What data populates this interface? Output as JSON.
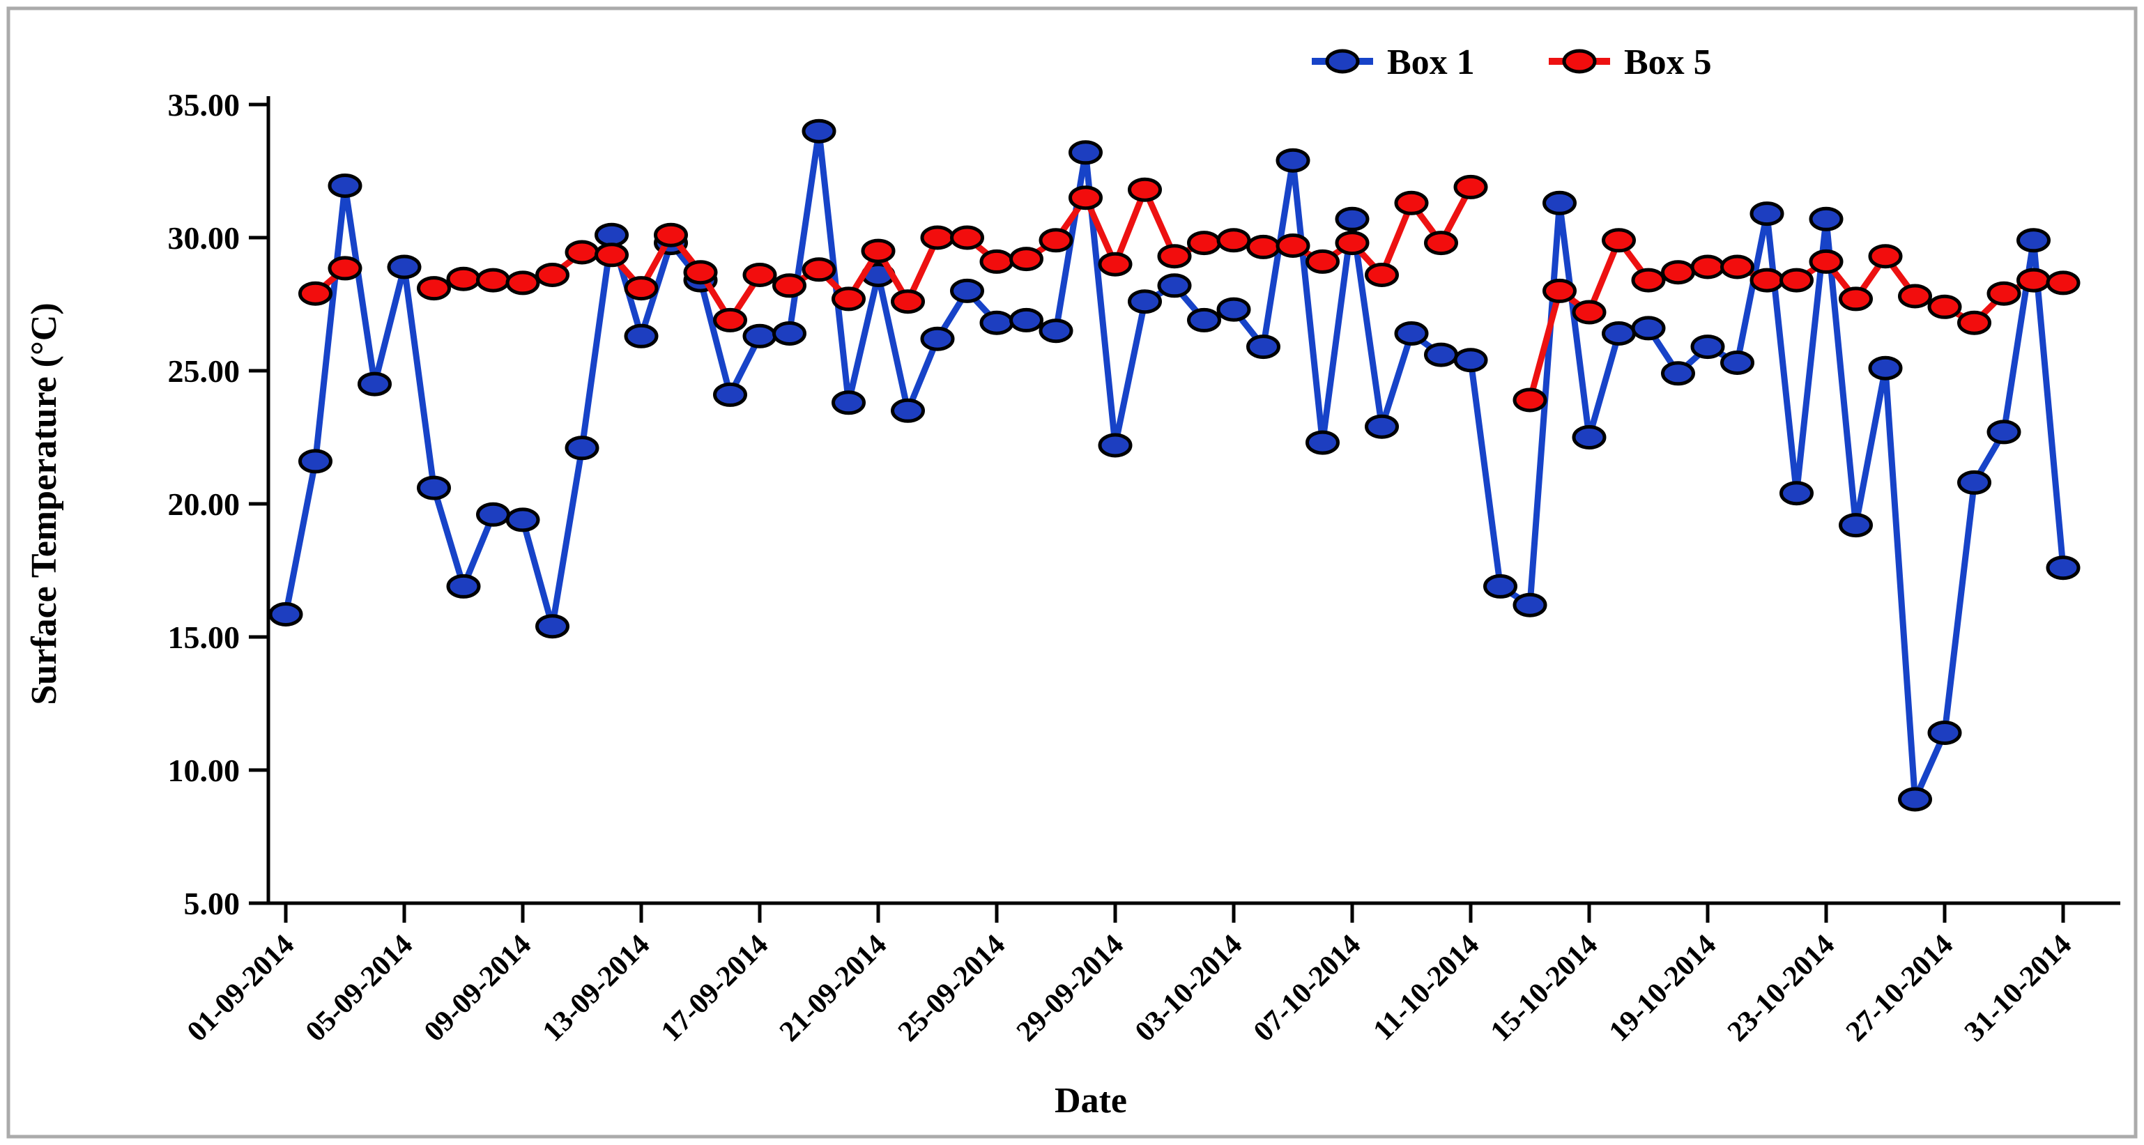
{
  "figure": {
    "border_color": "#ababab",
    "background": "#ffffff"
  },
  "chart_data": {
    "type": "line",
    "title": "",
    "xlabel": "Date",
    "ylabel": "Surface Temperature (°C)",
    "ylim": [
      5,
      35
    ],
    "y_tick_step": 5,
    "grid": false,
    "legend_position": "top-right",
    "y_tick_labels": [
      "35.00",
      "30.00",
      "25.00",
      "20.00",
      "15.00",
      "10.00",
      "5.00"
    ],
    "x_tick_every": 4,
    "x_tick_labels": [
      "01-09-2014",
      "05-09-2014",
      "09-09-2014",
      "13-09-2014",
      "17-09-2014",
      "21-09-2014",
      "25-09-2014",
      "29-09-2014",
      "03-10-2014",
      "07-10-2014",
      "11-10-2014",
      "15-10-2014",
      "19-10-2014",
      "23-10-2014",
      "27-10-2014",
      "31-10-2014"
    ],
    "x": [
      "01-09-2014",
      "02-09-2014",
      "03-09-2014",
      "04-09-2014",
      "05-09-2014",
      "06-09-2014",
      "07-09-2014",
      "08-09-2014",
      "09-09-2014",
      "10-09-2014",
      "11-09-2014",
      "12-09-2014",
      "13-09-2014",
      "14-09-2014",
      "15-09-2014",
      "16-09-2014",
      "17-09-2014",
      "18-09-2014",
      "19-09-2014",
      "20-09-2014",
      "21-09-2014",
      "22-09-2014",
      "23-09-2014",
      "24-09-2014",
      "25-09-2014",
      "26-09-2014",
      "27-09-2014",
      "28-09-2014",
      "29-09-2014",
      "30-09-2014",
      "01-10-2014",
      "02-10-2014",
      "03-10-2014",
      "04-10-2014",
      "05-10-2014",
      "06-10-2014",
      "07-10-2014",
      "08-10-2014",
      "09-10-2014",
      "10-10-2014",
      "11-10-2014",
      "12-10-2014",
      "13-10-2014",
      "14-10-2014",
      "15-10-2014",
      "16-10-2014",
      "17-10-2014",
      "18-10-2014",
      "19-10-2014",
      "20-10-2014",
      "21-10-2014",
      "22-10-2014",
      "23-10-2014",
      "24-10-2014",
      "25-10-2014",
      "26-10-2014",
      "27-10-2014",
      "28-10-2014",
      "29-10-2014",
      "30-10-2014",
      "31-10-2014"
    ],
    "series": [
      {
        "name": "Box 1",
        "line_color": "#1743c8",
        "marker_fill": "#1d3ec0",
        "values": [
          15.85,
          21.6,
          31.95,
          24.5,
          28.9,
          20.6,
          16.9,
          19.6,
          19.4,
          15.4,
          22.1,
          30.1,
          26.3,
          29.8,
          28.4,
          24.1,
          26.3,
          26.4,
          34.0,
          23.8,
          28.6,
          23.5,
          26.2,
          28.0,
          26.8,
          26.9,
          26.5,
          33.2,
          22.2,
          27.6,
          28.2,
          26.9,
          27.3,
          25.9,
          32.9,
          22.3,
          30.7,
          22.9,
          26.4,
          25.6,
          25.4,
          16.9,
          16.2,
          31.3,
          22.5,
          26.4,
          26.6,
          24.9,
          25.9,
          25.3,
          30.9,
          20.4,
          30.7,
          19.2,
          25.1,
          8.9,
          11.4,
          20.8,
          22.7,
          29.9,
          17.6
        ]
      },
      {
        "name": "Box 5",
        "line_color": "#ed1111",
        "marker_fill": "#f20d0d",
        "values": [
          null,
          27.9,
          28.85,
          null,
          null,
          28.1,
          28.45,
          28.4,
          28.3,
          28.6,
          29.45,
          29.35,
          28.1,
          30.1,
          28.7,
          26.9,
          28.6,
          28.2,
          28.8,
          27.7,
          29.5,
          27.6,
          30.0,
          30.0,
          29.1,
          29.2,
          29.9,
          31.5,
          29.0,
          31.8,
          29.3,
          29.8,
          29.9,
          29.65,
          29.7,
          29.1,
          29.8,
          28.6,
          31.3,
          29.8,
          31.9,
          null,
          23.9,
          28.0,
          27.2,
          29.9,
          28.4,
          28.7,
          28.9,
          28.9,
          28.4,
          28.4,
          29.1,
          27.7,
          29.3,
          27.8,
          27.4,
          26.8,
          27.9,
          28.4,
          28.3
        ]
      }
    ]
  }
}
